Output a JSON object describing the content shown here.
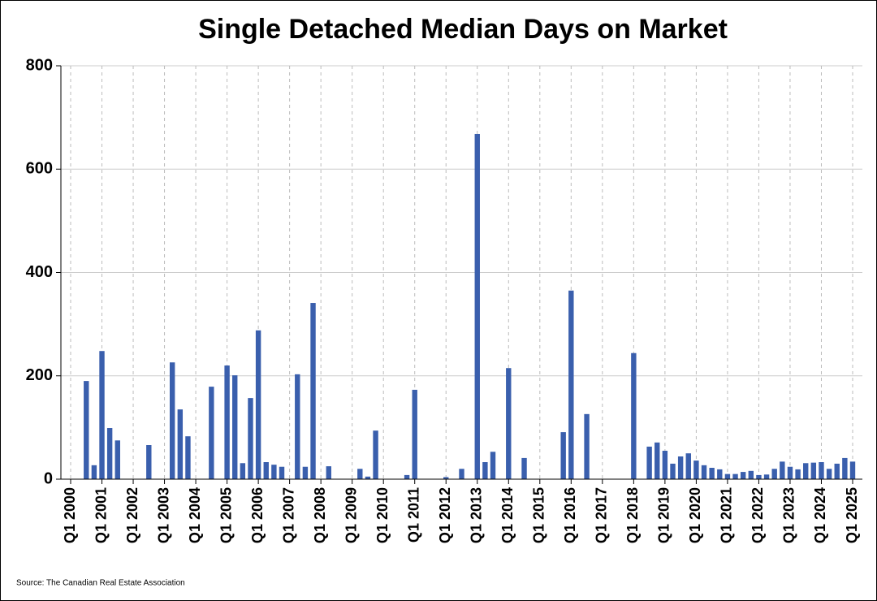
{
  "chart_data": {
    "type": "bar",
    "title": "Single Detached Median Days on Market",
    "source": "Source: The Canadian Real Estate Association",
    "color": "#3a5fad",
    "grid": true,
    "ylim": [
      0,
      800
    ],
    "yticks": [
      0,
      200,
      400,
      600,
      800
    ],
    "categories": [
      "Q1 2000",
      null,
      null,
      null,
      "Q1 2001",
      null,
      null,
      null,
      "Q1 2002",
      null,
      null,
      null,
      "Q1 2003",
      null,
      null,
      null,
      "Q1 2004",
      null,
      null,
      null,
      "Q1 2005",
      null,
      null,
      null,
      "Q1 2006",
      null,
      null,
      null,
      "Q1 2007",
      null,
      null,
      null,
      "Q1 2008",
      null,
      null,
      null,
      "Q1 2009",
      null,
      null,
      null,
      "Q1 2010",
      null,
      null,
      null,
      "Q1 2011",
      null,
      null,
      null,
      "Q1 2012",
      null,
      null,
      null,
      "Q1 2013",
      null,
      null,
      null,
      "Q1 2014",
      null,
      null,
      null,
      "Q1 2015",
      null,
      null,
      null,
      "Q1 2016",
      null,
      null,
      null,
      "Q1 2017",
      null,
      null,
      null,
      "Q1 2018",
      null,
      null,
      null,
      "Q1 2019",
      null,
      null,
      null,
      "Q1 2020",
      null,
      null,
      null,
      "Q1 2021",
      null,
      null,
      null,
      "Q1 2022",
      null,
      null,
      null,
      "Q1 2023",
      null,
      null,
      null,
      "Q1 2024",
      null,
      null,
      null,
      "Q1 2025"
    ],
    "values": [
      null,
      null,
      190,
      27,
      248,
      99,
      75,
      null,
      null,
      null,
      66,
      null,
      null,
      226,
      135,
      83,
      null,
      null,
      179,
      null,
      220,
      201,
      31,
      157,
      288,
      33,
      28,
      24,
      null,
      203,
      24,
      341,
      null,
      25,
      null,
      null,
      null,
      20,
      5,
      94,
      null,
      null,
      null,
      8,
      173,
      null,
      null,
      null,
      4,
      null,
      20,
      null,
      668,
      33,
      53,
      null,
      215,
      null,
      41,
      null,
      null,
      null,
      null,
      91,
      365,
      null,
      126,
      null,
      null,
      null,
      null,
      null,
      244,
      null,
      63,
      71,
      55,
      30,
      44,
      50,
      36,
      27,
      22,
      19,
      10,
      10,
      14,
      16,
      8,
      9,
      20,
      34,
      24,
      19,
      31,
      32,
      33,
      20,
      30,
      41,
      34
    ]
  }
}
